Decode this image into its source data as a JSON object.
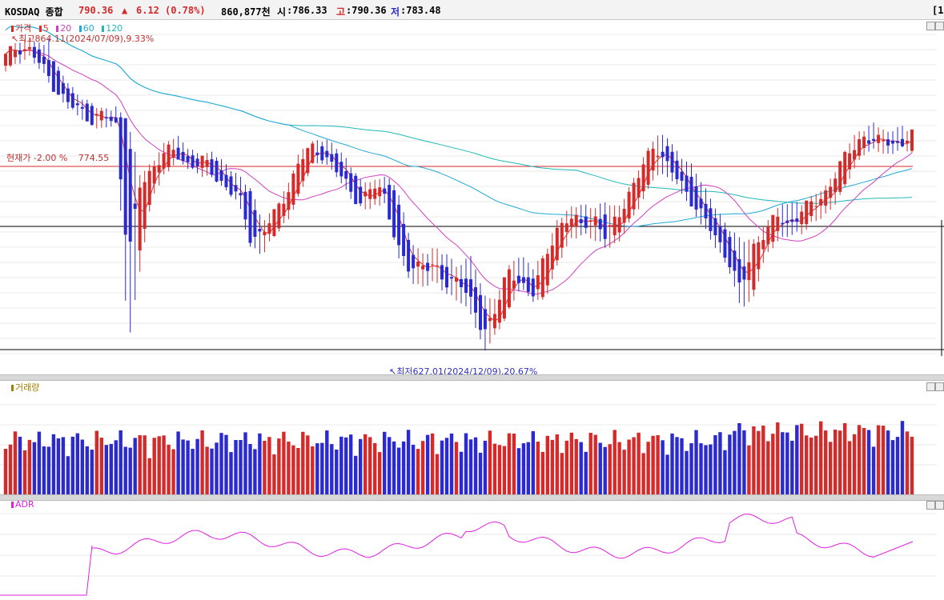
{
  "header": {
    "title": "KOSDAQ 종합",
    "price": "790.36",
    "change_arrow": "▲",
    "change": "6.12",
    "change_pct": "(0.78%)",
    "volume_text": "860,877천",
    "open_label": "시",
    "open_value": ":786.33",
    "high_label": "고",
    "high_value": ":790.36",
    "low_label": "저",
    "low_value": ":783.48",
    "bracket": "[1"
  },
  "colors": {
    "up": "#d42a2a",
    "down": "#2a2ad0",
    "ma5": "#e03030",
    "ma20": "#d040c0",
    "ma60": "#20a8d8",
    "ma120": "#20b8b8",
    "adr": "#e020e0",
    "volume_label": "#a08000"
  },
  "main_legend": {
    "price": "가격",
    "ma5": "5",
    "ma20": "20",
    "ma60": "60",
    "ma120": "120"
  },
  "annotations": {
    "high": "최고864.11(2024/07/09),9.33%",
    "low": "최저627.01(2024/12/09),20.67%",
    "current": "현재가 -2.00 %",
    "current_value": "774.55"
  },
  "volume_pane": {
    "label": "거래량"
  },
  "adr_pane": {
    "label": "ADR"
  },
  "chart_data": {
    "type": "candlestick",
    "series_name": "KOSDAQ 종합",
    "indicators": [
      "가격",
      "5",
      "20",
      "60",
      "120"
    ],
    "ohlc_approx": [
      [
        845,
        852,
        840,
        850
      ],
      [
        850,
        862,
        845,
        858
      ],
      [
        858,
        864.11,
        850,
        855
      ],
      [
        855,
        860,
        838,
        842
      ],
      [
        842,
        846,
        825,
        828
      ],
      [
        828,
        832,
        812,
        815
      ],
      [
        815,
        820,
        805,
        810
      ],
      [
        810,
        815,
        798,
        803
      ],
      [
        803,
        810,
        795,
        806
      ],
      [
        806,
        812,
        800,
        798
      ],
      [
        798,
        800,
        630,
        700
      ],
      [
        700,
        760,
        690,
        752
      ],
      [
        752,
        770,
        745,
        765
      ],
      [
        765,
        785,
        760,
        780
      ],
      [
        780,
        790,
        772,
        775
      ],
      [
        775,
        780,
        765,
        768
      ],
      [
        768,
        775,
        760,
        772
      ],
      [
        772,
        778,
        758,
        760
      ],
      [
        760,
        768,
        748,
        752
      ],
      [
        752,
        760,
        740,
        745
      ],
      [
        745,
        750,
        705,
        712
      ],
      [
        712,
        725,
        700,
        718
      ],
      [
        718,
        735,
        715,
        730
      ],
      [
        730,
        752,
        725,
        748
      ],
      [
        748,
        778,
        745,
        772
      ],
      [
        772,
        785,
        768,
        780
      ],
      [
        780,
        788,
        770,
        776
      ],
      [
        776,
        782,
        760,
        764
      ],
      [
        764,
        770,
        745,
        750
      ],
      [
        750,
        756,
        735,
        740
      ],
      [
        740,
        755,
        735,
        752
      ],
      [
        752,
        760,
        740,
        744
      ],
      [
        744,
        750,
        700,
        706
      ],
      [
        706,
        712,
        680,
        686
      ],
      [
        686,
        700,
        675,
        695
      ],
      [
        695,
        705,
        680,
        690
      ],
      [
        690,
        700,
        670,
        676
      ],
      [
        676,
        690,
        665,
        685
      ],
      [
        685,
        700,
        655,
        662
      ],
      [
        662,
        670,
        627.01,
        640
      ],
      [
        640,
        665,
        638,
        660
      ],
      [
        660,
        690,
        655,
        685
      ],
      [
        685,
        700,
        675,
        680
      ],
      [
        680,
        690,
        665,
        670
      ],
      [
        670,
        700,
        665,
        695
      ],
      [
        695,
        725,
        690,
        720
      ],
      [
        720,
        735,
        710,
        728
      ],
      [
        728,
        738,
        715,
        722
      ],
      [
        722,
        735,
        712,
        730
      ],
      [
        730,
        740,
        705,
        712
      ],
      [
        712,
        735,
        708,
        730
      ],
      [
        730,
        752,
        725,
        748
      ],
      [
        748,
        772,
        740,
        765
      ],
      [
        765,
        790,
        760,
        785
      ],
      [
        785,
        790,
        760,
        768
      ],
      [
        768,
        775,
        750,
        755
      ],
      [
        755,
        768,
        735,
        742
      ],
      [
        742,
        752,
        720,
        728
      ],
      [
        728,
        735,
        705,
        712
      ],
      [
        712,
        720,
        690,
        698
      ],
      [
        698,
        712,
        660,
        672
      ],
      [
        672,
        710,
        665,
        705
      ],
      [
        705,
        722,
        698,
        718
      ],
      [
        718,
        735,
        710,
        728
      ],
      [
        728,
        740,
        715,
        722
      ],
      [
        722,
        738,
        716,
        734
      ],
      [
        734,
        745,
        725,
        738
      ],
      [
        738,
        752,
        730,
        748
      ],
      [
        748,
        768,
        742,
        765
      ],
      [
        765,
        788,
        760,
        780
      ],
      [
        780,
        795,
        776,
        790
      ],
      [
        790,
        800,
        780,
        784
      ],
      [
        784,
        792,
        775,
        788
      ],
      [
        788,
        798,
        780,
        782
      ],
      [
        782,
        792,
        778,
        790
      ]
    ],
    "price_range": [
      615,
      872
    ],
    "adr_note": "ADR line shown in lower pane"
  }
}
